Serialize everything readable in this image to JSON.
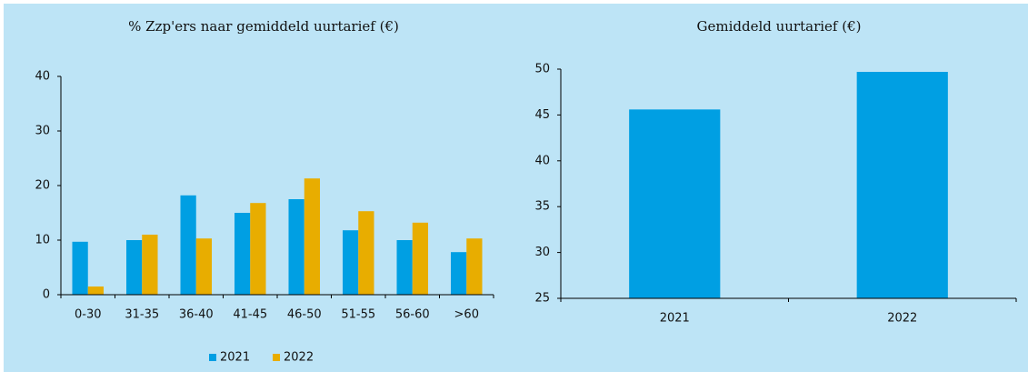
{
  "chart_data": [
    {
      "type": "bar",
      "title": "% Zzp'ers naar gemiddeld uurtarief (€)",
      "categories": [
        "0-30",
        "31-35",
        "36-40",
        "41-45",
        "46-50",
        "51-55",
        "56-60",
        ">60"
      ],
      "series": [
        {
          "name": "2021",
          "color": "#009fe3",
          "values": [
            9.7,
            10,
            18.2,
            15,
            17.5,
            11.8,
            10,
            7.8
          ]
        },
        {
          "name": "2022",
          "color": "#e8ad00",
          "values": [
            1.5,
            11,
            10.3,
            16.8,
            21.3,
            15.3,
            13.2,
            10.3
          ]
        }
      ],
      "ylim": [
        0,
        40
      ],
      "yticks": [
        0,
        10,
        20,
        30,
        40
      ],
      "legend": "bottom"
    },
    {
      "type": "bar",
      "title": "Gemiddeld uurtarief (€)",
      "categories": [
        "2021",
        "2022"
      ],
      "values": [
        45.6,
        49.7
      ],
      "color": "#009fe3",
      "ylim": [
        25,
        50
      ],
      "yticks": [
        25,
        30,
        35,
        40,
        45,
        50
      ]
    }
  ]
}
